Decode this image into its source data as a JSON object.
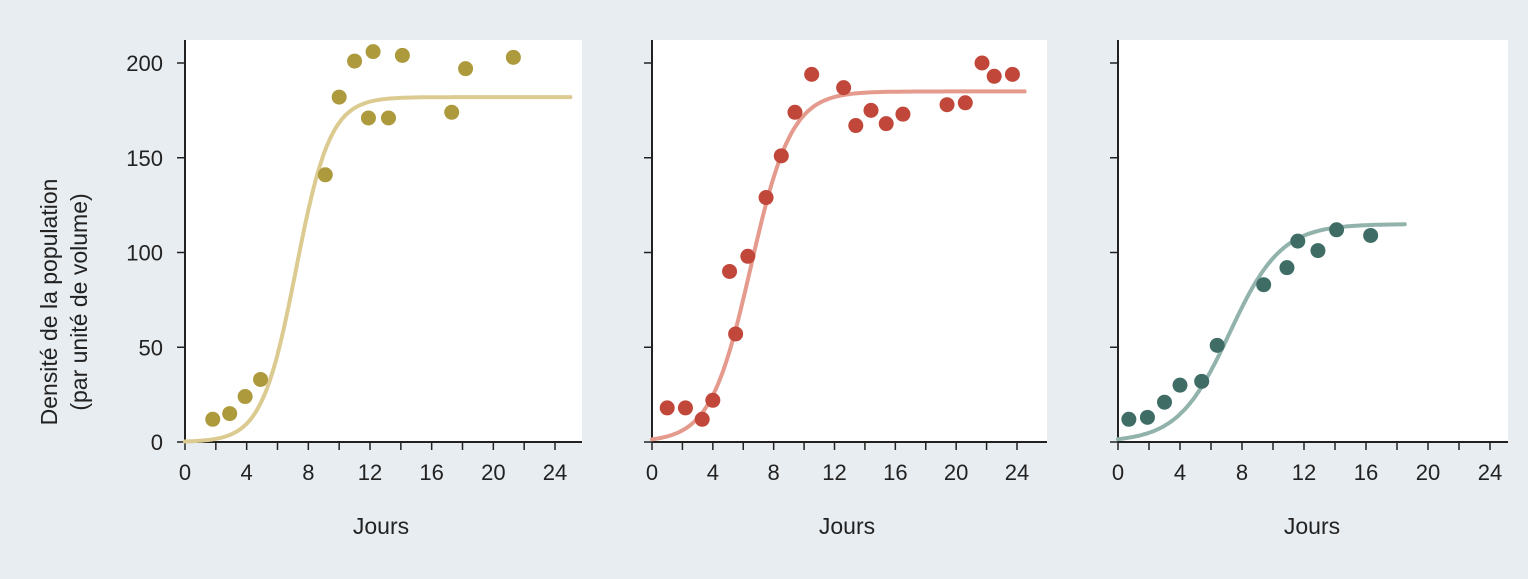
{
  "chart_data": [
    {
      "type": "scatter",
      "xlabel": "Jours",
      "ylabel": "Densité de la population",
      "ylabel_line2": "(par unité de volume)",
      "xlim": [
        0,
        25
      ],
      "ylim": [
        0,
        210
      ],
      "xticks": [
        0,
        4,
        8,
        12,
        16,
        20,
        24
      ],
      "yticks": [
        0,
        50,
        100,
        150,
        200
      ],
      "color": "#ad9a3d",
      "curve_color": "#dccb91",
      "points": {
        "x": [
          1.8,
          2.9,
          3.9,
          4.9,
          9.1,
          10.0,
          11.0,
          11.9,
          12.2,
          13.2,
          14.1,
          17.3,
          18.2,
          21.3
        ],
        "y": [
          12,
          15,
          24,
          33,
          141,
          182,
          201,
          171,
          206,
          171,
          204,
          174,
          197,
          203
        ]
      },
      "curve": {
        "K": 182,
        "r": 0.9,
        "t0": 7.2,
        "x_end": 25
      }
    },
    {
      "type": "scatter",
      "xlabel": "Jours",
      "xlim": [
        0,
        25
      ],
      "ylim": [
        0,
        210
      ],
      "xticks": [
        0,
        4,
        8,
        12,
        16,
        20,
        24
      ],
      "color": "#c0473a",
      "curve_color": "#e49a8d",
      "points": {
        "x": [
          1.0,
          2.2,
          3.3,
          4.0,
          5.1,
          5.5,
          6.3,
          7.5,
          8.5,
          9.4,
          10.5,
          12.6,
          13.4,
          14.4,
          15.4,
          16.5,
          19.4,
          20.6,
          21.7,
          22.5,
          23.7
        ],
        "y": [
          18,
          18,
          12,
          22,
          90,
          57,
          98,
          129,
          151,
          174,
          194,
          187,
          167,
          175,
          168,
          173,
          178,
          179,
          200,
          193,
          194
        ]
      },
      "curve": {
        "K": 185,
        "r": 0.75,
        "t0": 6.5,
        "x_end": 24.5
      }
    },
    {
      "type": "scatter",
      "xlabel": "Jours",
      "xlim": [
        0,
        25
      ],
      "ylim": [
        0,
        210
      ],
      "xticks": [
        0,
        4,
        8,
        12,
        16,
        20,
        24
      ],
      "color": "#3f6d66",
      "curve_color": "#92b3ac",
      "points": {
        "x": [
          0.7,
          1.9,
          3.0,
          4.0,
          5.4,
          6.4,
          9.4,
          10.9,
          11.6,
          12.9,
          14.1,
          16.3
        ],
        "y": [
          12,
          13,
          21,
          30,
          32,
          51,
          83,
          92,
          106,
          101,
          112,
          109
        ]
      },
      "curve": {
        "K": 115,
        "r": 0.6,
        "t0": 7.2,
        "x_end": 18.5
      }
    }
  ]
}
